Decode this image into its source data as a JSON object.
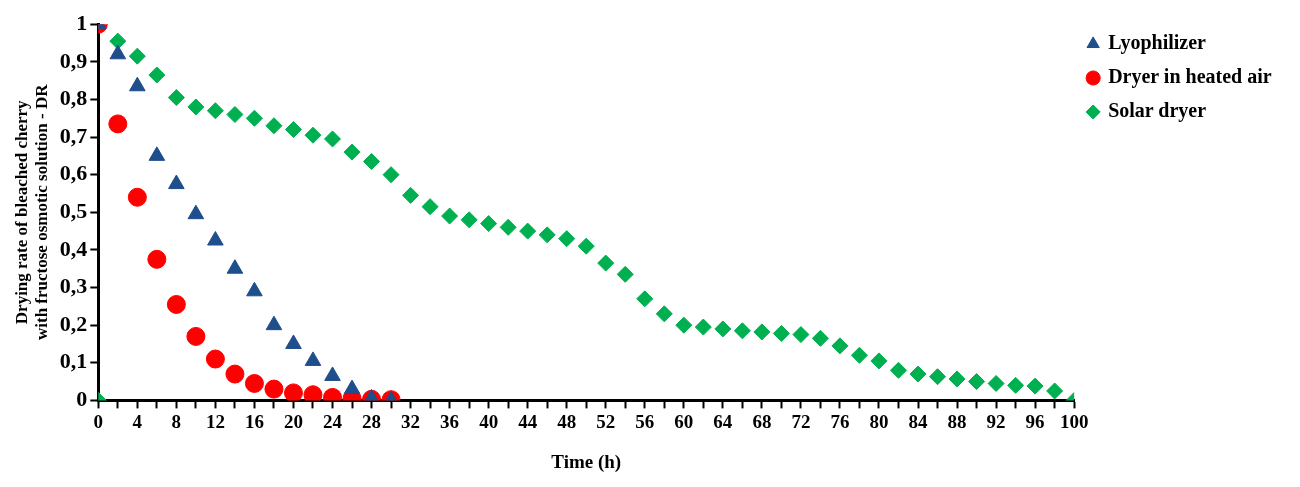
{
  "chart_data": {
    "type": "scatter",
    "xlabel": "Time (h)",
    "ylabel": "Drying rate of bleached cherry with fructose osmotic solution - DR",
    "xlim": [
      0,
      100
    ],
    "xticks": [
      0,
      {
        "value": 2,
        "label": null
      },
      4,
      {
        "value": 6,
        "label": null
      },
      8,
      {
        "value": 10,
        "label": null
      },
      12,
      {
        "value": 14,
        "label": null
      },
      16,
      {
        "value": 18,
        "label": null
      },
      20,
      {
        "value": 22,
        "label": null
      },
      24,
      {
        "value": 26,
        "label": null
      },
      28,
      {
        "value": 30,
        "label": null
      },
      32,
      {
        "value": 34,
        "label": null
      },
      36,
      {
        "value": 38,
        "label": null
      },
      40,
      {
        "value": 42,
        "label": null
      },
      44,
      {
        "value": 46,
        "label": null
      },
      48,
      {
        "value": 50,
        "label": null
      },
      52,
      {
        "value": 54,
        "label": null
      },
      56,
      {
        "value": 58,
        "label": null
      },
      60,
      {
        "value": 62,
        "label": null
      },
      64,
      {
        "value": 66,
        "label": null
      },
      68,
      {
        "value": 70,
        "label": null
      },
      72,
      {
        "value": 74,
        "label": null
      },
      76,
      {
        "value": 78,
        "label": null
      },
      80,
      {
        "value": 82,
        "label": null
      },
      84,
      {
        "value": 86,
        "label": null
      },
      88,
      {
        "value": 90,
        "label": null
      },
      92,
      {
        "value": 94,
        "label": null
      },
      96,
      {
        "value": 98,
        "label": null
      },
      100
    ],
    "ylim": [
      0,
      1
    ],
    "yticks": [
      0,
      {
        "value": 0.1,
        "label": "0,1"
      },
      {
        "value": 0.2,
        "label": "0,2"
      },
      {
        "value": 0.3,
        "label": "0,3"
      },
      {
        "value": 0.4,
        "label": "0,4"
      },
      {
        "value": 0.5,
        "label": "0,5"
      },
      {
        "value": 0.6,
        "label": "0,6"
      },
      {
        "value": 0.7,
        "label": "0,7"
      },
      {
        "value": 0.8,
        "label": "0,8"
      },
      {
        "value": 0.9,
        "label": "0,9"
      },
      1
    ],
    "grid": false,
    "legend": "top right",
    "series": [
      {
        "name": "Lyophilizer",
        "color": "#1f4e8c",
        "marker": "triangle",
        "x": [
          0,
          2,
          4,
          6,
          8,
          10,
          12,
          14,
          16,
          18,
          20,
          22,
          24,
          26,
          28,
          30
        ],
        "values": [
          1,
          0.92,
          0.835,
          0.65,
          0.575,
          0.495,
          0.425,
          0.35,
          0.29,
          0.2,
          0.15,
          0.105,
          0.065,
          0.03,
          0.005,
          0
        ]
      },
      {
        "name": "Dryer in heated air",
        "color": "#ff0000",
        "marker": "circle",
        "x": [
          0,
          2,
          4,
          6,
          8,
          10,
          12,
          14,
          16,
          18,
          20,
          22,
          24,
          26,
          28,
          30
        ],
        "values": [
          1,
          0.735,
          0.54,
          0.375,
          0.255,
          0.17,
          0.11,
          0.07,
          0.045,
          0.03,
          0.02,
          0.015,
          0.008,
          0.005,
          0.003,
          0.002
        ]
      },
      {
        "name": "Solar dryer",
        "color": "#00b050",
        "marker": "diamond",
        "x": [
          0,
          2,
          4,
          6,
          8,
          10,
          12,
          14,
          16,
          18,
          20,
          22,
          24,
          26,
          28,
          30,
          32,
          34,
          36,
          38,
          40,
          42,
          44,
          46,
          48,
          50,
          52,
          54,
          56,
          58,
          60,
          62,
          64,
          66,
          68,
          70,
          72,
          74,
          76,
          78,
          80,
          82,
          84,
          86,
          88,
          90,
          92,
          94,
          96,
          98,
          100
        ],
        "values": [
          0,
          0.955,
          0.915,
          0.865,
          0.805,
          0.78,
          0.77,
          0.76,
          0.75,
          0.73,
          0.72,
          0.705,
          0.695,
          0.66,
          0.635,
          0.6,
          0.545,
          0.515,
          0.49,
          0.48,
          0.47,
          0.46,
          0.45,
          0.44,
          0.43,
          0.41,
          0.365,
          0.335,
          0.27,
          0.23,
          0.2,
          0.195,
          0.19,
          0.185,
          0.182,
          0.178,
          0.175,
          0.165,
          0.145,
          0.12,
          0.105,
          0.08,
          0.07,
          0.063,
          0.057,
          0.05,
          0.045,
          0.04,
          0.038,
          0.025,
          0
        ]
      }
    ]
  }
}
